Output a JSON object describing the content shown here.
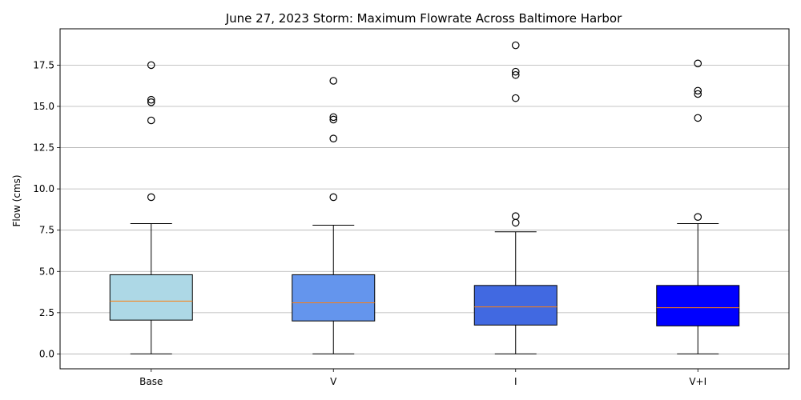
{
  "chart_data": {
    "type": "box",
    "title": "June 27, 2023 Storm: Maximum Flowrate Across Baltimore Harbor",
    "xlabel": "",
    "ylabel": "Flow (cms)",
    "ylim": [
      -0.9,
      19.7
    ],
    "yticks": [
      0.0,
      2.5,
      5.0,
      7.5,
      10.0,
      12.5,
      15.0,
      17.5
    ],
    "ytick_labels": [
      "0.0",
      "2.5",
      "5.0",
      "7.5",
      "10.0",
      "12.5",
      "15.0",
      "17.5"
    ],
    "grid": "y",
    "categories": [
      "Base",
      "V",
      "I",
      "V+I"
    ],
    "series": [
      {
        "whislo": 0.0,
        "q1": 2.05,
        "med": 3.2,
        "q3": 4.8,
        "whishi": 7.9,
        "fliers": [
          9.5,
          14.15,
          15.25,
          15.4,
          17.5
        ],
        "color": "#add8e6"
      },
      {
        "whislo": 0.0,
        "q1": 2.0,
        "med": 3.1,
        "q3": 4.8,
        "whishi": 7.8,
        "fliers": [
          9.5,
          13.05,
          14.2,
          14.35,
          16.55
        ],
        "color": "#6495ed"
      },
      {
        "whislo": 0.0,
        "q1": 1.75,
        "med": 2.85,
        "q3": 4.15,
        "whishi": 7.4,
        "fliers": [
          7.95,
          8.35,
          15.5,
          16.9,
          17.1,
          18.7
        ],
        "color": "#4169e1"
      },
      {
        "whislo": 0.0,
        "q1": 1.7,
        "med": 2.8,
        "q3": 4.15,
        "whishi": 7.9,
        "fliers": [
          8.3,
          14.3,
          15.75,
          15.95,
          17.6
        ],
        "color": "#0000ff"
      }
    ],
    "median_color": "#ff7f0e",
    "grid_color": "#b0b0b0"
  }
}
